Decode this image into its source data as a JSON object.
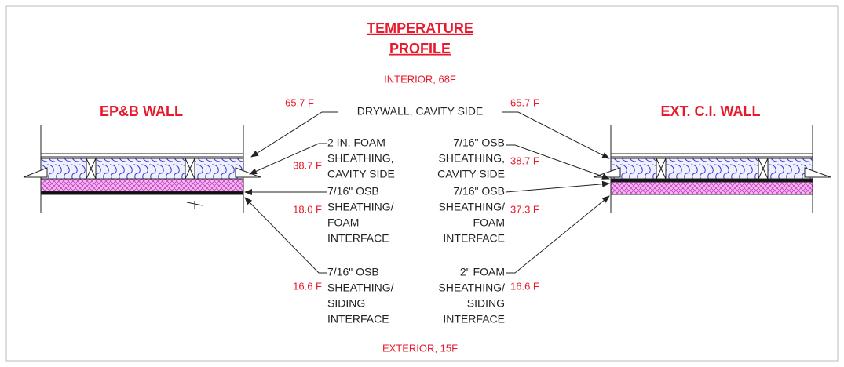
{
  "title": [
    "TEMPERATURE",
    "PROFILE"
  ],
  "interior": "INTERIOR, 68F",
  "exterior": "EXTERIOR, 15F",
  "walls": [
    "EP&B WALL",
    "EXT. C.I. WALL"
  ],
  "drywall_label": "DRYWALL, CAVITY SIDE",
  "left": {
    "temps": [
      "65.7 F",
      "38.7 F",
      "18.0 F",
      "16.6 F"
    ],
    "labels": [
      [
        "2 IN. FOAM",
        "SHEATHING,",
        "CAVITY SIDE"
      ],
      [
        "7/16\" OSB",
        "SHEATHING/",
        "FOAM",
        "INTERFACE"
      ],
      [
        "7/16\" OSB",
        "SHEATHING/",
        "SIDING",
        "INTERFACE"
      ]
    ]
  },
  "right": {
    "temps": [
      "65.7 F",
      "38.7 F",
      "37.3 F",
      "16.6 F"
    ],
    "labels": [
      [
        "7/16\" OSB",
        "SHEATHING,",
        "CAVITY SIDE"
      ],
      [
        "7/16\" OSB",
        "SHEATHING/",
        "FOAM",
        "INTERFACE"
      ],
      [
        "2\" FOAM",
        "SHEATHING/",
        "SIDING",
        "INTERFACE"
      ]
    ]
  }
}
